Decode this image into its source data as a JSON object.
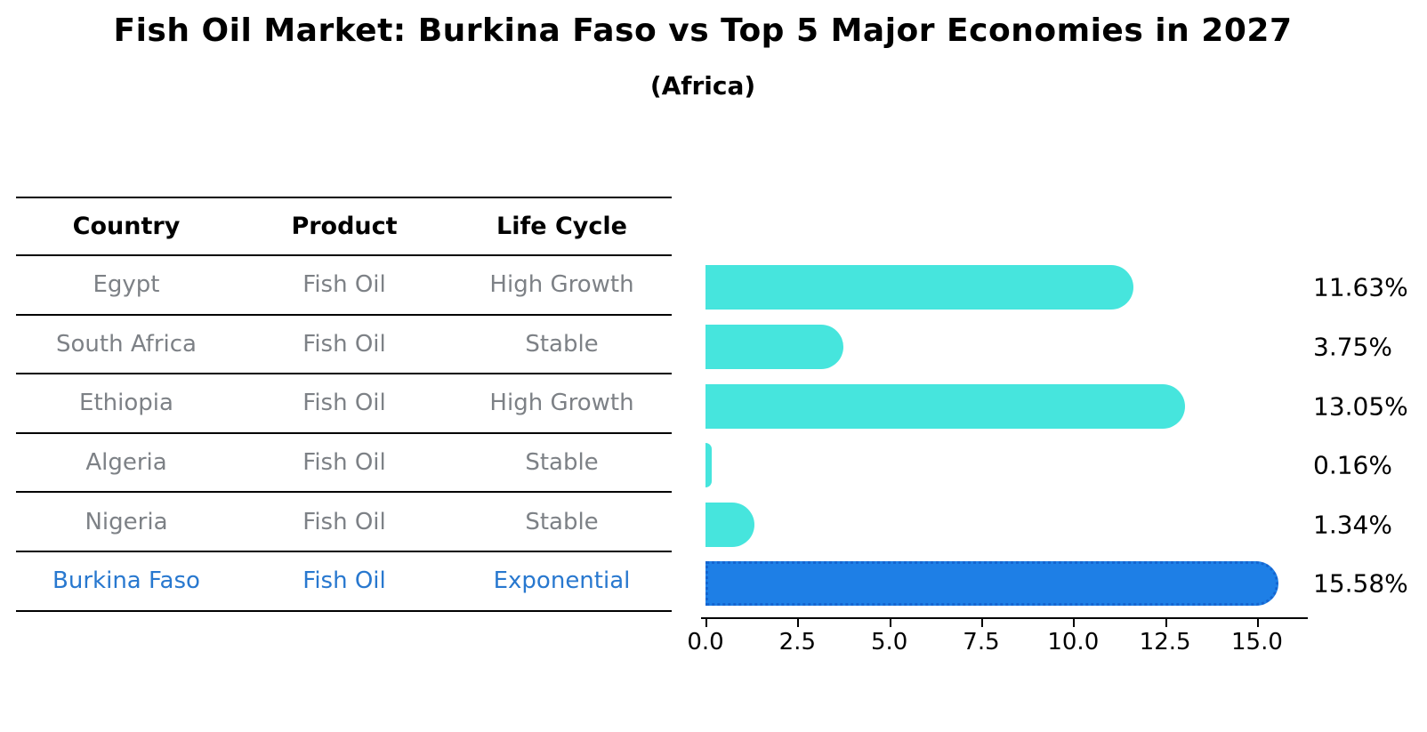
{
  "header": {
    "title": "Fish Oil Market: Burkina Faso vs Top 5 Major Economies in 2027",
    "subtitle": "(Africa)"
  },
  "table": {
    "headers": [
      "Country",
      "Product",
      "Life Cycle"
    ],
    "rows": [
      {
        "country": "Egypt",
        "product": "Fish Oil",
        "life_cycle": "High Growth"
      },
      {
        "country": "South Africa",
        "product": "Fish Oil",
        "life_cycle": "Stable"
      },
      {
        "country": "Ethiopia",
        "product": "Fish Oil",
        "life_cycle": "High Growth"
      },
      {
        "country": "Algeria",
        "product": "Fish Oil",
        "life_cycle": "Stable"
      },
      {
        "country": "Nigeria",
        "product": "Fish Oil",
        "life_cycle": "Stable"
      },
      {
        "country": "Burkina Faso",
        "product": "Fish Oil",
        "life_cycle": "Exponential"
      }
    ],
    "highlight_row_index": 5
  },
  "chart_data": {
    "type": "bar",
    "orientation": "horizontal",
    "title": "Fish Oil Market: Burkina Faso vs Top 5 Major Economies in 2027",
    "subtitle": "(Africa)",
    "categories": [
      "Egypt",
      "South Africa",
      "Ethiopia",
      "Algeria",
      "Nigeria",
      "Burkina Faso"
    ],
    "values": [
      11.63,
      3.75,
      13.05,
      0.16,
      1.34,
      15.58
    ],
    "value_labels": [
      "11.63%",
      "3.75%",
      "13.05%",
      "0.16%",
      "1.34%",
      "15.58%"
    ],
    "highlight_index": 5,
    "xlim": [
      0,
      16.4
    ],
    "xticks": [
      0,
      2.5,
      5,
      7.5,
      10,
      12.5,
      15
    ],
    "xtick_labels": [
      "0.0",
      "2.5",
      "5.0",
      "7.5",
      "10.0",
      "12.5",
      "15.0"
    ],
    "grid": false,
    "legend": null
  },
  "colors": {
    "bar_color": "#46e5dd",
    "highlight_bar_color": "#1e7fe6",
    "highlight_bar_edge_color": "#1565d0",
    "table_text_color": "#7d8186",
    "highlight_text_color": "#2878cf",
    "heading_color": "#000000"
  }
}
